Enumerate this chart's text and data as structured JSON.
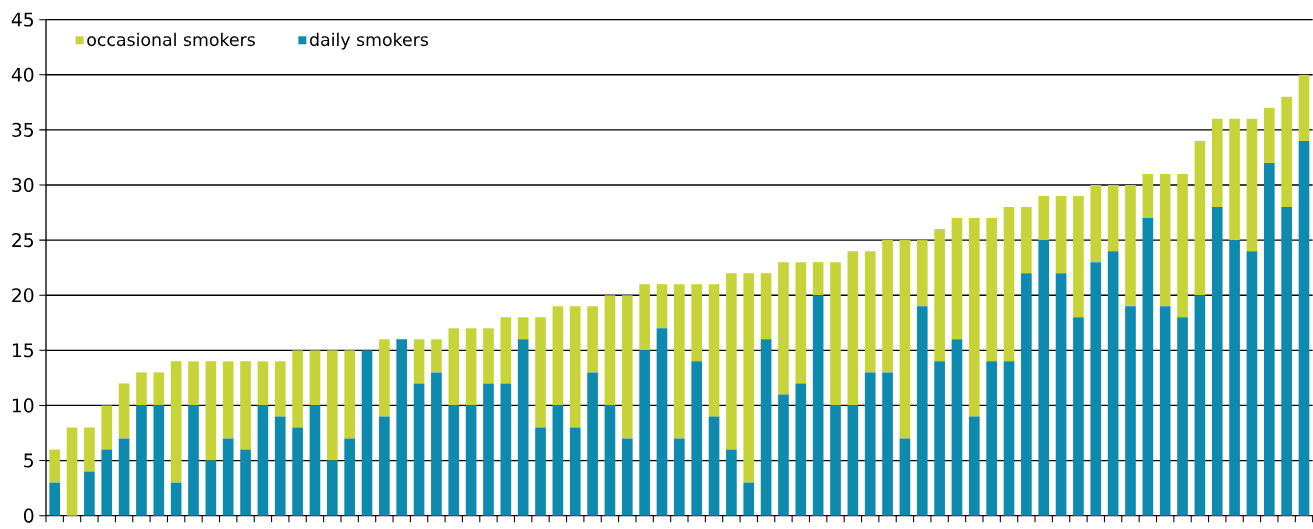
{
  "chart_data": {
    "type": "bar",
    "stacked": true,
    "categories": [
      null,
      null,
      null,
      null,
      null,
      null,
      null,
      null,
      null,
      null,
      null,
      null,
      null,
      null,
      null,
      null,
      null,
      null,
      null,
      null,
      null,
      null,
      null,
      null,
      null,
      null,
      null,
      null,
      null,
      null,
      null,
      null,
      null,
      null,
      null,
      null,
      null,
      null,
      null,
      null,
      null,
      null,
      null,
      null,
      null,
      null,
      null,
      null,
      null,
      null,
      null,
      null,
      null,
      null,
      null,
      null,
      null,
      null,
      null,
      null,
      null,
      null,
      null,
      null,
      null,
      null,
      null,
      null,
      null,
      null,
      null,
      null,
      null
    ],
    "series": [
      {
        "name": "daily smokers",
        "color": "#0e8aae",
        "values": [
          3,
          0,
          4,
          6,
          7,
          10,
          10,
          3,
          10,
          5,
          7,
          6,
          10,
          9,
          8,
          10,
          5,
          7,
          15,
          9,
          16,
          12,
          13,
          10,
          10,
          12,
          12,
          16,
          8,
          10,
          8,
          13,
          10,
          7,
          15,
          17,
          7,
          14,
          9,
          6,
          3,
          16,
          11,
          12,
          20,
          10,
          10,
          13,
          13,
          7,
          19,
          14,
          16,
          9,
          14,
          14,
          22,
          25,
          22,
          18,
          23,
          24,
          19,
          27,
          19,
          18,
          20,
          28,
          25,
          24,
          32,
          28,
          34
        ]
      },
      {
        "name": "occasional smokers",
        "color": "#c6d43a",
        "values": [
          3,
          8,
          4,
          4,
          5,
          3,
          3,
          11,
          4,
          9,
          7,
          8,
          4,
          5,
          7,
          5,
          10,
          8,
          0,
          7,
          0,
          4,
          3,
          7,
          7,
          5,
          6,
          2,
          10,
          9,
          11,
          6,
          10,
          13,
          6,
          4,
          14,
          7,
          12,
          16,
          19,
          6,
          12,
          11,
          3,
          13,
          14,
          11,
          12,
          18,
          6,
          12,
          11,
          18,
          13,
          14,
          6,
          4,
          7,
          11,
          7,
          6,
          11,
          4,
          12,
          13,
          14,
          8,
          11,
          12,
          5,
          10,
          6
        ]
      }
    ],
    "ylim": [
      0,
      45
    ],
    "yticks": [
      0,
      5,
      10,
      15,
      20,
      25,
      30,
      35,
      40,
      45
    ],
    "grid": "y",
    "legend": "top left",
    "tick_labels": "y"
  }
}
